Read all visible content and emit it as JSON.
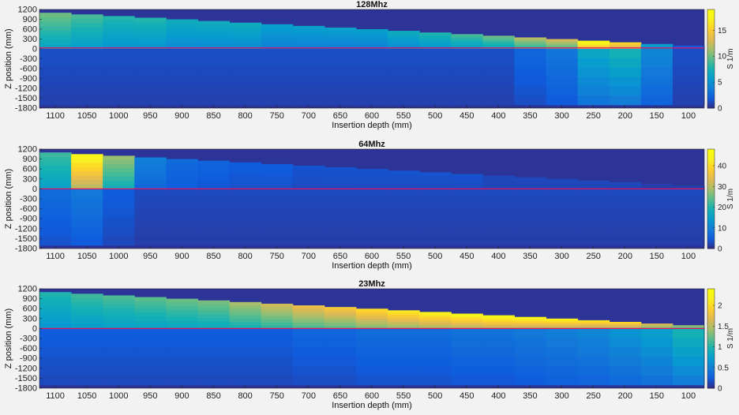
{
  "chart_data": [
    {
      "type": "heatmap",
      "title": "128Mhz",
      "xlabel": "Insertion depth (mm)",
      "ylabel": "Z position (mm)",
      "colorbar_label": "S 1/m",
      "x_ticks": [
        1100,
        1050,
        1000,
        950,
        900,
        850,
        800,
        750,
        700,
        650,
        600,
        550,
        500,
        450,
        400,
        350,
        300,
        250,
        200,
        150,
        100
      ],
      "y_ticks": [
        1200,
        900,
        600,
        300,
        0,
        -300,
        -600,
        -900,
        -1200,
        -1500,
        -1800
      ],
      "xlim": [
        1125,
        75
      ],
      "ylim": [
        -1800,
        1200
      ],
      "clim": [
        0,
        19
      ],
      "colorbar_ticks": [
        0,
        5,
        10,
        15
      ],
      "columns": [
        1100,
        1050,
        1000,
        950,
        900,
        850,
        800,
        750,
        700,
        650,
        600,
        550,
        500,
        450,
        400,
        350,
        300,
        250,
        200,
        150,
        100
      ],
      "top_edge": [
        1100,
        1050,
        1000,
        950,
        900,
        850,
        800,
        750,
        700,
        650,
        600,
        550,
        500,
        450,
        400,
        350,
        300,
        250,
        200,
        150,
        100
      ],
      "bottom_edge": [
        -1700,
        -1700,
        -1700,
        -1700,
        -1700,
        -1700,
        -1700,
        -1700,
        -1700,
        -1700,
        -1700,
        -1700,
        -1700,
        -1700,
        -1700,
        -1700,
        -1700,
        -1700,
        -1700,
        -1700,
        -1700
      ],
      "tip_value": [
        10,
        9,
        8,
        8,
        7,
        7,
        7,
        6,
        6,
        6,
        6,
        7,
        8,
        9,
        10,
        12,
        13,
        19,
        16,
        6,
        2
      ],
      "below_value": [
        1,
        1,
        1,
        1,
        1,
        1,
        1,
        1,
        1,
        1,
        1,
        1,
        1,
        1,
        1,
        2,
        3,
        6,
        7,
        4,
        1
      ],
      "red_line_z": 30
    },
    {
      "type": "heatmap",
      "title": "64Mhz",
      "xlabel": "Insertion depth (mm)",
      "ylabel": "Z position (mm)",
      "colorbar_label": "S 1/m",
      "x_ticks": [
        1100,
        1050,
        1000,
        950,
        900,
        850,
        800,
        750,
        700,
        650,
        600,
        550,
        500,
        450,
        400,
        350,
        300,
        250,
        200,
        150,
        100
      ],
      "y_ticks": [
        1200,
        900,
        600,
        300,
        0,
        -300,
        -600,
        -900,
        -1200,
        -1500,
        -1800
      ],
      "xlim": [
        1125,
        75
      ],
      "ylim": [
        -1800,
        1200
      ],
      "clim": [
        0,
        48
      ],
      "colorbar_ticks": [
        0,
        10,
        20,
        30,
        40
      ],
      "columns": [
        1100,
        1050,
        1000,
        950,
        900,
        850,
        800,
        750,
        700,
        650,
        600,
        550,
        500,
        450,
        400,
        350,
        300,
        250,
        200,
        150,
        100
      ],
      "top_edge": [
        1100,
        1050,
        1000,
        950,
        900,
        850,
        800,
        750,
        700,
        650,
        600,
        550,
        500,
        450,
        400,
        350,
        300,
        250,
        200,
        150,
        100
      ],
      "bottom_edge": [
        -1700,
        -1700,
        -1700,
        -1700,
        -1700,
        -1700,
        -1700,
        -1700,
        -1700,
        -1700,
        -1700,
        -1700,
        -1700,
        -1700,
        -1700,
        -1700,
        -1700,
        -1700,
        -1700,
        -1700,
        -1700
      ],
      "tip_value": [
        22,
        45,
        28,
        10,
        7,
        6,
        5,
        5,
        4,
        4,
        4,
        4,
        4,
        4,
        3,
        3,
        3,
        3,
        3,
        2,
        2
      ],
      "below_value": [
        6,
        8,
        4,
        2,
        2,
        2,
        2,
        2,
        2,
        2,
        2,
        2,
        2,
        2,
        2,
        2,
        2,
        2,
        2,
        2,
        2
      ],
      "red_line_z": 0
    },
    {
      "type": "heatmap",
      "title": "23Mhz",
      "xlabel": "Insertion depth (mm)",
      "ylabel": "Z position (mm)",
      "colorbar_label": "S 1/m",
      "x_ticks": [
        1100,
        1050,
        1000,
        950,
        900,
        850,
        800,
        750,
        700,
        650,
        600,
        550,
        500,
        450,
        400,
        350,
        300,
        250,
        200,
        150,
        100
      ],
      "y_ticks": [
        1200,
        900,
        600,
        300,
        0,
        -300,
        -600,
        -900,
        -1200,
        -1500,
        -1800
      ],
      "xlim": [
        1125,
        75
      ],
      "ylim": [
        -1800,
        1200
      ],
      "clim": [
        0,
        2.4
      ],
      "colorbar_ticks": [
        0,
        0.5,
        1,
        1.5,
        2
      ],
      "columns": [
        1100,
        1050,
        1000,
        950,
        900,
        850,
        800,
        750,
        700,
        650,
        600,
        550,
        500,
        450,
        400,
        350,
        300,
        250,
        200,
        150,
        100
      ],
      "top_edge": [
        1100,
        1050,
        1000,
        950,
        900,
        850,
        800,
        750,
        700,
        650,
        600,
        550,
        500,
        450,
        400,
        350,
        300,
        250,
        200,
        150,
        100
      ],
      "bottom_edge": [
        -1700,
        -1700,
        -1700,
        -1700,
        -1700,
        -1700,
        -1700,
        -1700,
        -1700,
        -1700,
        -1700,
        -1700,
        -1700,
        -1700,
        -1700,
        -1700,
        -1700,
        -1700,
        -1700,
        -1700,
        -1700
      ],
      "tip_value": [
        1.0,
        1.1,
        1.15,
        1.2,
        1.25,
        1.3,
        1.45,
        1.6,
        1.75,
        1.85,
        2.0,
        2.1,
        2.2,
        2.25,
        2.3,
        2.25,
        2.2,
        2.1,
        2.0,
        1.7,
        1.4
      ],
      "below_value": [
        0.2,
        0.2,
        0.2,
        0.2,
        0.2,
        0.2,
        0.2,
        0.2,
        0.25,
        0.25,
        0.3,
        0.3,
        0.3,
        0.35,
        0.35,
        0.4,
        0.45,
        0.5,
        0.6,
        0.7,
        0.9
      ],
      "red_line_z": 0
    }
  ]
}
